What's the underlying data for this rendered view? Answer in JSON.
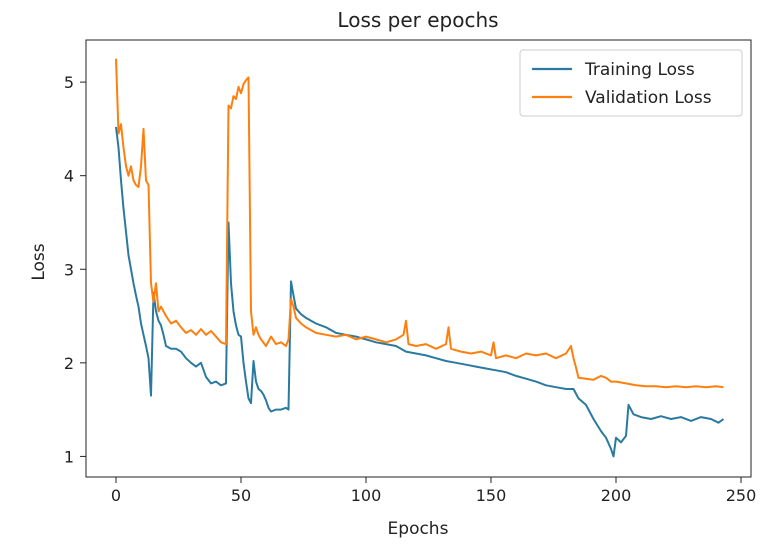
{
  "chart_data": {
    "type": "line",
    "title": "Loss per epochs",
    "xlabel": "Epochs",
    "ylabel": "Loss",
    "xlim": [
      -12,
      254
    ],
    "ylim": [
      0.78,
      5.45
    ],
    "xticks": [
      0,
      50,
      100,
      150,
      200,
      250
    ],
    "yticks": [
      1,
      2,
      3,
      4,
      5
    ],
    "grid": false,
    "legend": "top-right",
    "series": [
      {
        "name": "Training Loss",
        "color": "#2a7aa0",
        "points": [
          [
            0,
            4.52
          ],
          [
            1,
            4.3
          ],
          [
            2,
            3.95
          ],
          [
            3,
            3.65
          ],
          [
            4,
            3.4
          ],
          [
            5,
            3.15
          ],
          [
            6,
            3.0
          ],
          [
            7,
            2.85
          ],
          [
            8,
            2.72
          ],
          [
            9,
            2.6
          ],
          [
            10,
            2.42
          ],
          [
            11,
            2.3
          ],
          [
            12,
            2.18
          ],
          [
            13,
            2.05
          ],
          [
            14,
            1.65
          ],
          [
            15,
            2.75
          ],
          [
            16,
            2.55
          ],
          [
            17,
            2.45
          ],
          [
            18,
            2.4
          ],
          [
            19,
            2.3
          ],
          [
            20,
            2.18
          ],
          [
            22,
            2.15
          ],
          [
            24,
            2.15
          ],
          [
            26,
            2.12
          ],
          [
            28,
            2.05
          ],
          [
            30,
            2.0
          ],
          [
            32,
            1.96
          ],
          [
            34,
            2.0
          ],
          [
            36,
            1.85
          ],
          [
            38,
            1.78
          ],
          [
            40,
            1.8
          ],
          [
            42,
            1.76
          ],
          [
            44,
            1.78
          ],
          [
            45,
            3.5
          ],
          [
            46,
            2.85
          ],
          [
            47,
            2.55
          ],
          [
            48,
            2.4
          ],
          [
            49,
            2.3
          ],
          [
            50,
            2.28
          ],
          [
            51,
            2.0
          ],
          [
            52,
            1.8
          ],
          [
            53,
            1.62
          ],
          [
            54,
            1.57
          ],
          [
            55,
            2.02
          ],
          [
            56,
            1.8
          ],
          [
            57,
            1.72
          ],
          [
            58,
            1.7
          ],
          [
            59,
            1.66
          ],
          [
            60,
            1.6
          ],
          [
            61,
            1.52
          ],
          [
            62,
            1.48
          ],
          [
            64,
            1.5
          ],
          [
            66,
            1.5
          ],
          [
            68,
            1.52
          ],
          [
            69,
            1.5
          ],
          [
            70,
            2.87
          ],
          [
            71,
            2.72
          ],
          [
            72,
            2.58
          ],
          [
            74,
            2.52
          ],
          [
            76,
            2.48
          ],
          [
            78,
            2.45
          ],
          [
            80,
            2.42
          ],
          [
            84,
            2.38
          ],
          [
            88,
            2.32
          ],
          [
            92,
            2.3
          ],
          [
            96,
            2.28
          ],
          [
            100,
            2.25
          ],
          [
            104,
            2.22
          ],
          [
            108,
            2.2
          ],
          [
            112,
            2.18
          ],
          [
            116,
            2.12
          ],
          [
            120,
            2.1
          ],
          [
            124,
            2.08
          ],
          [
            128,
            2.05
          ],
          [
            132,
            2.02
          ],
          [
            136,
            2.0
          ],
          [
            140,
            1.98
          ],
          [
            144,
            1.96
          ],
          [
            148,
            1.94
          ],
          [
            152,
            1.92
          ],
          [
            156,
            1.9
          ],
          [
            160,
            1.86
          ],
          [
            164,
            1.83
          ],
          [
            168,
            1.8
          ],
          [
            172,
            1.76
          ],
          [
            176,
            1.74
          ],
          [
            180,
            1.72
          ],
          [
            183,
            1.72
          ],
          [
            185,
            1.62
          ],
          [
            188,
            1.55
          ],
          [
            191,
            1.4
          ],
          [
            194,
            1.27
          ],
          [
            196,
            1.2
          ],
          [
            198,
            1.08
          ],
          [
            199,
            1.0
          ],
          [
            200,
            1.2
          ],
          [
            202,
            1.15
          ],
          [
            204,
            1.22
          ],
          [
            205,
            1.55
          ],
          [
            207,
            1.45
          ],
          [
            210,
            1.42
          ],
          [
            214,
            1.4
          ],
          [
            218,
            1.43
          ],
          [
            222,
            1.4
          ],
          [
            226,
            1.42
          ],
          [
            230,
            1.38
          ],
          [
            234,
            1.42
          ],
          [
            238,
            1.4
          ],
          [
            241,
            1.36
          ],
          [
            243,
            1.4
          ]
        ]
      },
      {
        "name": "Validation Loss",
        "color": "#ff7f0e",
        "points": [
          [
            0,
            5.25
          ],
          [
            1,
            4.45
          ],
          [
            2,
            4.55
          ],
          [
            3,
            4.3
          ],
          [
            4,
            4.1
          ],
          [
            5,
            4.0
          ],
          [
            6,
            4.1
          ],
          [
            7,
            3.95
          ],
          [
            8,
            3.9
          ],
          [
            9,
            3.88
          ],
          [
            10,
            4.1
          ],
          [
            11,
            4.5
          ],
          [
            12,
            3.95
          ],
          [
            13,
            3.9
          ],
          [
            14,
            2.85
          ],
          [
            15,
            2.65
          ],
          [
            16,
            2.85
          ],
          [
            17,
            2.55
          ],
          [
            18,
            2.6
          ],
          [
            20,
            2.5
          ],
          [
            22,
            2.42
          ],
          [
            24,
            2.45
          ],
          [
            26,
            2.38
          ],
          [
            28,
            2.32
          ],
          [
            30,
            2.35
          ],
          [
            32,
            2.3
          ],
          [
            34,
            2.36
          ],
          [
            36,
            2.3
          ],
          [
            38,
            2.34
          ],
          [
            40,
            2.28
          ],
          [
            42,
            2.22
          ],
          [
            44,
            2.2
          ],
          [
            45,
            4.75
          ],
          [
            46,
            4.72
          ],
          [
            47,
            4.85
          ],
          [
            48,
            4.82
          ],
          [
            49,
            4.95
          ],
          [
            50,
            4.88
          ],
          [
            51,
            4.98
          ],
          [
            52,
            5.02
          ],
          [
            53,
            5.05
          ],
          [
            54,
            2.55
          ],
          [
            55,
            2.3
          ],
          [
            56,
            2.38
          ],
          [
            57,
            2.3
          ],
          [
            58,
            2.25
          ],
          [
            60,
            2.18
          ],
          [
            62,
            2.28
          ],
          [
            64,
            2.2
          ],
          [
            66,
            2.22
          ],
          [
            68,
            2.18
          ],
          [
            69,
            2.25
          ],
          [
            70,
            2.68
          ],
          [
            71,
            2.6
          ],
          [
            72,
            2.48
          ],
          [
            74,
            2.42
          ],
          [
            76,
            2.38
          ],
          [
            78,
            2.35
          ],
          [
            80,
            2.32
          ],
          [
            84,
            2.3
          ],
          [
            88,
            2.28
          ],
          [
            92,
            2.3
          ],
          [
            96,
            2.25
          ],
          [
            100,
            2.28
          ],
          [
            104,
            2.25
          ],
          [
            108,
            2.22
          ],
          [
            112,
            2.25
          ],
          [
            115,
            2.3
          ],
          [
            116,
            2.45
          ],
          [
            117,
            2.2
          ],
          [
            120,
            2.18
          ],
          [
            124,
            2.2
          ],
          [
            128,
            2.15
          ],
          [
            132,
            2.2
          ],
          [
            133,
            2.38
          ],
          [
            134,
            2.15
          ],
          [
            138,
            2.12
          ],
          [
            142,
            2.1
          ],
          [
            146,
            2.12
          ],
          [
            150,
            2.08
          ],
          [
            151,
            2.22
          ],
          [
            152,
            2.05
          ],
          [
            156,
            2.08
          ],
          [
            160,
            2.05
          ],
          [
            164,
            2.1
          ],
          [
            168,
            2.08
          ],
          [
            172,
            2.1
          ],
          [
            176,
            2.05
          ],
          [
            180,
            2.1
          ],
          [
            182,
            2.18
          ],
          [
            183,
            2.05
          ],
          [
            184,
            1.95
          ],
          [
            185,
            1.84
          ],
          [
            188,
            1.83
          ],
          [
            191,
            1.82
          ],
          [
            194,
            1.86
          ],
          [
            196,
            1.84
          ],
          [
            198,
            1.8
          ],
          [
            200,
            1.8
          ],
          [
            204,
            1.78
          ],
          [
            208,
            1.76
          ],
          [
            212,
            1.75
          ],
          [
            216,
            1.75
          ],
          [
            220,
            1.74
          ],
          [
            224,
            1.75
          ],
          [
            228,
            1.74
          ],
          [
            232,
            1.75
          ],
          [
            236,
            1.74
          ],
          [
            240,
            1.75
          ],
          [
            243,
            1.74
          ]
        ]
      }
    ]
  }
}
